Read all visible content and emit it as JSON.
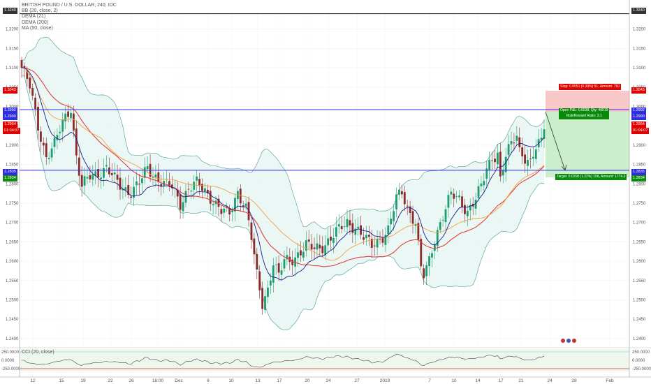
{
  "chart": {
    "symbol_line": "BRITISH POUND / U.S. DOLLAR, 240, IDC",
    "indicators": [
      "BB (20, close, 2)",
      "DEMA (21)",
      "DEMA (200)",
      "MA (50, close)"
    ],
    "cci_label": "CCI (20, close)"
  },
  "price_axis": {
    "labels": [
      "1.3200",
      "1.3150",
      "1.3100",
      "1.3050",
      "1.3000",
      "1.2950",
      "1.2900",
      "1.2850",
      "1.2800",
      "1.2750",
      "1.2700",
      "1.2650",
      "1.2600",
      "1.2550",
      "1.2500",
      "1.2450",
      "1.2400"
    ],
    "cci_labels": [
      "250.0000",
      "0.0000",
      "-250.0000"
    ]
  },
  "time_axis": {
    "labels": [
      "12",
      "15",
      "19",
      "22",
      "26",
      "16:00",
      "Dec",
      "6",
      "10",
      "13",
      "17",
      "20",
      "24",
      "27",
      "2019",
      "7",
      "10",
      "14",
      "17",
      "21",
      "24",
      "28",
      "Feb"
    ]
  },
  "tags": {
    "left": [
      "1.3240",
      "1.3043",
      "1.2992",
      "1.2990",
      "1.2954",
      "01:04:07",
      "1.2835",
      "1.2834"
    ],
    "right": [
      "1.3240",
      "1.3043",
      "1.2992",
      "1.2990",
      "1.2954",
      "01:04:07",
      "1.2835",
      "1.2834"
    ]
  },
  "position_tool": {
    "stop_label": "Stop: 0.0051 (0.39%) 51, Amount: 750",
    "open_label": "Open P&L: 0.0038, Qty: 49019",
    "rr_label": "Risk/Reward Ratio: 3.1",
    "target_label": "Target: 0.0158 (1.22%) 158, Amount: 1774.3"
  },
  "colors": {
    "up": "#1e9e6e",
    "down": "#8c2a2a",
    "bb": "#5fa8a0",
    "dema21": "#1a1a8a",
    "dema200": "#e04040",
    "ma50": "#f0a040",
    "hline": "#2e2ee0",
    "stop_fill": "#f8c8c8",
    "target_fill": "#cbeecb"
  },
  "chart_data": {
    "type": "candlestick",
    "y_range": [
      1.238,
      1.325
    ],
    "horizontal_levels": [
      1.324,
      1.2992,
      1.2835
    ],
    "close_anchors": [
      [
        0,
        1.31
      ],
      [
        3,
        1.305
      ],
      [
        6,
        1.295
      ],
      [
        9,
        1.287
      ],
      [
        12,
        1.29
      ],
      [
        15,
        1.296
      ],
      [
        18,
        1.3
      ],
      [
        20,
        1.287
      ],
      [
        22,
        1.279
      ],
      [
        25,
        1.282
      ],
      [
        28,
        1.283
      ],
      [
        31,
        1.284
      ],
      [
        34,
        1.281
      ],
      [
        37,
        1.279
      ],
      [
        40,
        1.278
      ],
      [
        43,
        1.28
      ],
      [
        46,
        1.284
      ],
      [
        49,
        1.282
      ],
      [
        52,
        1.28
      ],
      [
        55,
        1.279
      ],
      [
        58,
        1.275
      ],
      [
        61,
        1.279
      ],
      [
        64,
        1.28
      ],
      [
        67,
        1.278
      ],
      [
        70,
        1.276
      ],
      [
        73,
        1.273
      ],
      [
        76,
        1.272
      ],
      [
        79,
        1.278
      ],
      [
        82,
        1.274
      ],
      [
        84,
        1.266
      ],
      [
        86,
        1.256
      ],
      [
        88,
        1.249
      ],
      [
        90,
        1.253
      ],
      [
        92,
        1.26
      ],
      [
        94,
        1.256
      ],
      [
        96,
        1.26
      ],
      [
        98,
        1.26
      ],
      [
        101,
        1.262
      ],
      [
        104,
        1.264
      ],
      [
        107,
        1.263
      ],
      [
        110,
        1.264
      ],
      [
        113,
        1.266
      ],
      [
        116,
        1.268
      ],
      [
        119,
        1.27
      ],
      [
        122,
        1.269
      ],
      [
        125,
        1.266
      ],
      [
        128,
        1.264
      ],
      [
        131,
        1.266
      ],
      [
        134,
        1.268
      ],
      [
        137,
        1.276
      ],
      [
        139,
        1.278
      ],
      [
        141,
        1.274
      ],
      [
        144,
        1.27
      ],
      [
        146,
        1.258
      ],
      [
        147,
        1.256
      ],
      [
        149,
        1.26
      ],
      [
        151,
        1.266
      ],
      [
        154,
        1.272
      ],
      [
        157,
        1.277
      ],
      [
        160,
        1.276
      ],
      [
        163,
        1.273
      ],
      [
        166,
        1.276
      ],
      [
        168,
        1.279
      ],
      [
        170,
        1.284
      ],
      [
        172,
        1.287
      ],
      [
        174,
        1.288
      ],
      [
        175,
        1.281
      ],
      [
        177,
        1.287
      ],
      [
        179,
        1.29
      ],
      [
        181,
        1.293
      ],
      [
        182,
        1.289
      ],
      [
        184,
        1.287
      ],
      [
        186,
        1.285
      ],
      [
        188,
        1.289
      ],
      [
        190,
        1.291
      ],
      [
        191,
        1.2954
      ]
    ]
  }
}
